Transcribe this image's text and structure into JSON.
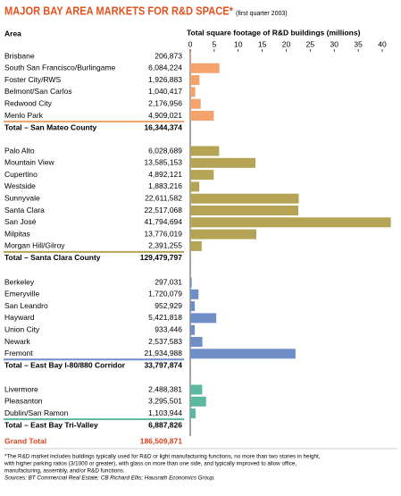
{
  "chart_data": {
    "type": "bar",
    "title": "MAJOR BAY AREA MARKETS FOR R&D SPACE*",
    "subtitle": "(first quarter 2003)",
    "area_header": "Area",
    "x_label": "Total square footage of R&D buildings (millions)",
    "xlim": [
      0,
      40
    ],
    "xticks": [
      0,
      5,
      10,
      15,
      20,
      25,
      30,
      35,
      40
    ],
    "groups": [
      {
        "color": "#f5a36c",
        "categories": [
          "Brisbane",
          "South San Francisco/Burlingame",
          "Foster City/RWS",
          "Belmont/San Carlos",
          "Redwood City",
          "Menlo Park"
        ],
        "values": [
          0.206873,
          6.084224,
          1.926883,
          1.040417,
          2.176956,
          4.909021
        ],
        "value_labels": [
          "206,873",
          "6,084,224",
          "1,926,883",
          "1,040,417",
          "2,176,956",
          "4,909,021"
        ],
        "total_name": "Total – San Mateo County",
        "total": "16,344,374"
      },
      {
        "color": "#b5a455",
        "categories": [
          "Palo Alto",
          "Mountain View",
          "Cupertino",
          "Westside",
          "Sunnyvale",
          "Santa Clara",
          "San José",
          "Milpitas",
          "Morgan Hill/Gilroy"
        ],
        "values": [
          6.028689,
          13.585153,
          4.892121,
          1.883216,
          22.611582,
          22.517068,
          41.794694,
          13.776019,
          2.391255
        ],
        "value_labels": [
          "6,028,689",
          "13,585,153",
          "4,892,121",
          "1,883,216",
          "22,611,582",
          "22,517,068",
          "41,794,694",
          "13,776,019",
          "2,391,255"
        ],
        "total_name": "Total – Santa Clara County",
        "total": "129,479,797"
      },
      {
        "color": "#6f8fc6",
        "categories": [
          "Berkeley",
          "Emeryville",
          "San Leandro",
          "Hayward",
          "Union City",
          "Newark",
          "Fremont"
        ],
        "values": [
          0.297031,
          1.720079,
          0.952929,
          5.421818,
          0.933446,
          2.537583,
          21.934988
        ],
        "value_labels": [
          "297,031",
          "1,720,079",
          "952,929",
          "5,421,818",
          "933,446",
          "2,537,583",
          "21,934,988"
        ],
        "total_name": "Total – East Bay I-80/880 Corridor",
        "total": "33,797,874"
      },
      {
        "color": "#5cb8a0",
        "categories": [
          "Livermore",
          "Pleasanton",
          "Dublin/San Ramon"
        ],
        "values": [
          2.488381,
          3.295501,
          1.103944
        ],
        "value_labels": [
          "2,488,381",
          "3,295,501",
          "1,103,944"
        ],
        "total_name": "Total – East Bay Tri-Valley",
        "total": "6,887,826"
      }
    ],
    "grand_total_name": "Grand Total",
    "grand_total": "186,509,871"
  },
  "footnote": [
    "*The R&D market includes buildings typically used for R&D or light manufacturing functions, no more than two stories in height,",
    "with higher parking ratios (3/1000 or greater), with glass on more than one side, and typically improved to allow office,",
    "manufacturing, assembly, and/or R&D functions."
  ],
  "sources": "Sources: BT Commercial Real Estate; CB Richard Ellis; Hausrath Economics Group."
}
